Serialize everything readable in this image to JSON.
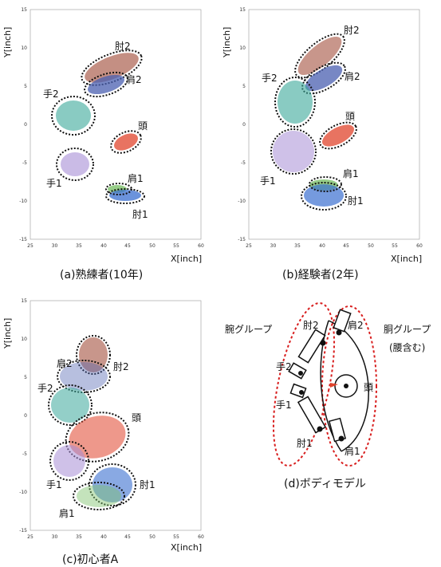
{
  "axes": {
    "ylabel": "Y[inch]",
    "xlabel": "X[inch]",
    "xticks": [
      "25",
      "30",
      "35",
      "40",
      "45",
      "50",
      "55",
      "60"
    ],
    "yticks": [
      "15",
      "10",
      "5",
      "0",
      "-5",
      "-10",
      "-15"
    ]
  },
  "panels": [
    {
      "id": "a",
      "caption": "(a)熟練者(10年)",
      "labels": {
        "hiji2": "肘2",
        "kata2": "肩2",
        "te2": "手2",
        "atama": "頭",
        "te1": "手1",
        "kata1": "肩1",
        "hiji1": "肘1"
      }
    },
    {
      "id": "b",
      "caption": "(b)経験者(2年)",
      "labels": {
        "hiji2": "肘2",
        "kata2": "肩2",
        "te2": "手2",
        "atama": "頭",
        "te1": "手1",
        "kata1": "肩1",
        "hiji1": "肘1"
      }
    },
    {
      "id": "c",
      "caption": "(c)初心者A",
      "labels": {
        "kata2": "肩2",
        "hiji2": "肘2",
        "te2": "手2",
        "atama": "頭",
        "te1": "手1",
        "hiji1": "肘1",
        "kata1": "肩1"
      }
    }
  ],
  "body_model": {
    "caption": "(d)ボディモデル",
    "arm_group": "腕グループ",
    "torso_group": "胴グループ",
    "torso_note": "(腰含む)",
    "hiji2": "肘2",
    "kata2": "肩2",
    "te2": "手2",
    "atama": "頭",
    "te1": "手1",
    "hiji1": "肘1",
    "kata1": "肩1"
  },
  "colors": {
    "hiji": "#b06a5a",
    "kata": "#4a5fb0",
    "te2": "#3aa89a",
    "atama": "#e0442c",
    "te1": "#a78ed6",
    "kata1": "#7dc06a",
    "hiji1": "#3a6fd0",
    "ring": "#111111",
    "group": "#d81e1e"
  }
}
